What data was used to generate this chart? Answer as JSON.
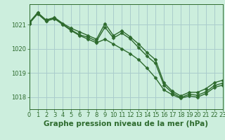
{
  "line1": {
    "x": [
      0,
      1,
      2,
      3,
      4,
      5,
      6,
      7,
      8,
      9,
      10,
      11,
      12,
      13,
      14,
      15,
      16,
      17,
      18,
      19,
      20,
      21,
      22,
      23
    ],
    "y": [
      1021.1,
      1021.5,
      1021.2,
      1021.3,
      1021.05,
      1020.85,
      1020.7,
      1020.55,
      1020.4,
      1021.05,
      1020.55,
      1020.75,
      1020.5,
      1020.2,
      1019.85,
      1019.55,
      1018.6,
      1018.25,
      1018.05,
      1018.2,
      1018.2,
      1018.35,
      1018.6,
      1018.7
    ]
  },
  "line2": {
    "x": [
      0,
      1,
      2,
      3,
      4,
      5,
      6,
      7,
      8,
      9,
      10,
      11,
      12,
      13,
      14,
      15,
      16,
      17,
      18,
      19,
      20,
      21,
      22,
      23
    ],
    "y": [
      1021.05,
      1021.45,
      1021.15,
      1021.25,
      1021.0,
      1020.75,
      1020.55,
      1020.4,
      1020.25,
      1020.4,
      1020.2,
      1020.0,
      1019.8,
      1019.55,
      1019.2,
      1018.8,
      1018.3,
      1018.1,
      1017.95,
      1018.05,
      1018.0,
      1018.15,
      1018.4,
      1018.5
    ]
  },
  "line3": {
    "x": [
      0,
      1,
      2,
      3,
      4,
      5,
      6,
      7,
      8,
      9,
      10,
      11,
      12,
      13,
      14,
      15,
      16,
      17,
      18,
      19,
      20,
      21,
      22,
      23
    ],
    "y": [
      1021.05,
      1021.5,
      1021.15,
      1021.28,
      1021.02,
      1020.78,
      1020.58,
      1020.48,
      1020.32,
      1020.9,
      1020.45,
      1020.65,
      1020.42,
      1020.05,
      1019.7,
      1019.4,
      1018.5,
      1018.18,
      1017.98,
      1018.12,
      1018.08,
      1018.22,
      1018.48,
      1018.58
    ]
  },
  "line_color": "#2d6a2d",
  "background_color": "#cceedd",
  "grid_color": "#aacccc",
  "title": "Graphe pression niveau de la mer (hPa)",
  "xlim": [
    0,
    23
  ],
  "ylim": [
    1017.5,
    1021.85
  ],
  "yticks": [
    1018,
    1019,
    1020,
    1021
  ],
  "xticks": [
    0,
    1,
    2,
    3,
    4,
    5,
    6,
    7,
    8,
    9,
    10,
    11,
    12,
    13,
    14,
    15,
    16,
    17,
    18,
    19,
    20,
    21,
    22,
    23
  ],
  "marker": "D",
  "marker_size": 2.5,
  "line_width": 1.0,
  "title_fontsize": 7.5,
  "tick_fontsize": 6.0
}
